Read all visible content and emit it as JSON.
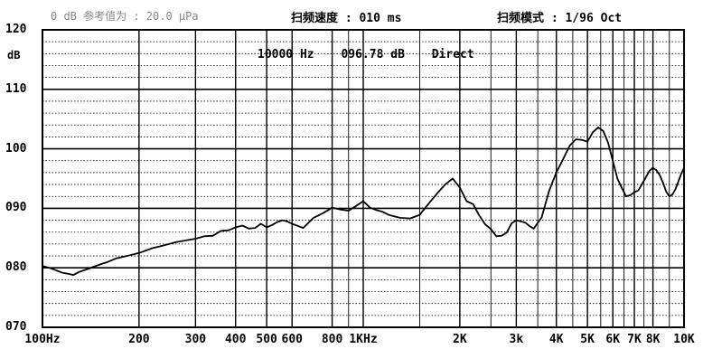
{
  "header": {
    "reference": "0 dB 参考值为 : 20.0 µPa",
    "sweep_speed": "扫频速度 : 010 ms",
    "sweep_mode": "扫频模式 : 1/96 Oct"
  },
  "readout": {
    "frequency": "10000 Hz",
    "level": "096.78 dB",
    "mode": "Direct"
  },
  "chart_data": {
    "type": "line",
    "title": "",
    "xlabel": "",
    "ylabel": "dB",
    "x_scale": "log",
    "xlim": [
      100,
      10000
    ],
    "ylim": [
      70,
      120
    ],
    "grid": true,
    "y_tick_labels": [
      "070",
      "080",
      "090",
      "100",
      "110",
      "120"
    ],
    "y_tick_values": [
      70,
      80,
      90,
      100,
      110,
      120
    ],
    "x_tick_labels": [
      "100Hz",
      "200",
      "300",
      "400",
      "500",
      "600",
      "800",
      "1KHz",
      "2K",
      "3k",
      "4K",
      "5K",
      "6K",
      "7K",
      "8K",
      "10K"
    ],
    "x_tick_values": [
      100,
      200,
      300,
      400,
      500,
      600,
      800,
      1000,
      2000,
      3000,
      4000,
      5000,
      6000,
      7000,
      8000,
      10000
    ],
    "series": [
      {
        "x": [
          100,
          105,
          110,
          115,
          120,
          125,
          130,
          140,
          150,
          160,
          170,
          180,
          190,
          200,
          220,
          240,
          260,
          280,
          300,
          320,
          340,
          360,
          380,
          400,
          420,
          440,
          460,
          480,
          500,
          520,
          540,
          560,
          580,
          600,
          650,
          700,
          750,
          800,
          850,
          900,
          950,
          1000,
          1050,
          1100,
          1150,
          1200,
          1300,
          1400,
          1500,
          1600,
          1700,
          1800,
          1900,
          2000,
          2100,
          2200,
          2300,
          2400,
          2500,
          2600,
          2700,
          2800,
          2900,
          3000,
          3100,
          3200,
          3300,
          3400,
          3600,
          3800,
          4000,
          4200,
          4400,
          4600,
          4800,
          5000,
          5200,
          5400,
          5600,
          5800,
          6000,
          6200,
          6400,
          6600,
          6800,
          7000,
          7200,
          7400,
          7600,
          7800,
          8000,
          8200,
          8400,
          8600,
          8800,
          9000,
          9200,
          9400,
          9600,
          9800,
          10000
        ],
        "values": [
          80.3,
          80.0,
          79.6,
          79.2,
          79.0,
          78.8,
          79.3,
          79.9,
          80.5,
          81.0,
          81.6,
          81.9,
          82.2,
          82.5,
          83.3,
          83.8,
          84.3,
          84.6,
          84.9,
          85.3,
          85.4,
          86.2,
          86.3,
          86.8,
          87.1,
          86.6,
          86.7,
          87.4,
          86.8,
          87.2,
          87.7,
          88.0,
          87.8,
          87.4,
          86.7,
          88.4,
          89.2,
          90.1,
          89.8,
          89.6,
          90.4,
          91.2,
          90.1,
          89.7,
          89.4,
          88.9,
          88.4,
          88.3,
          88.9,
          90.8,
          92.5,
          94.0,
          95.0,
          93.5,
          91.2,
          90.7,
          88.8,
          87.3,
          86.5,
          85.3,
          85.4,
          85.9,
          87.5,
          88.0,
          87.8,
          87.6,
          87.0,
          86.6,
          88.5,
          93.0,
          96.0,
          98.3,
          100.5,
          101.6,
          101.5,
          101.2,
          102.8,
          103.6,
          103.0,
          101.0,
          98.0,
          95.0,
          93.4,
          92.0,
          92.2,
          92.7,
          93.0,
          94.1,
          95.2,
          96.3,
          96.8,
          96.4,
          95.6,
          94.3,
          92.8,
          92.0,
          92.3,
          93.2,
          94.5,
          95.8,
          96.78
        ]
      }
    ]
  }
}
